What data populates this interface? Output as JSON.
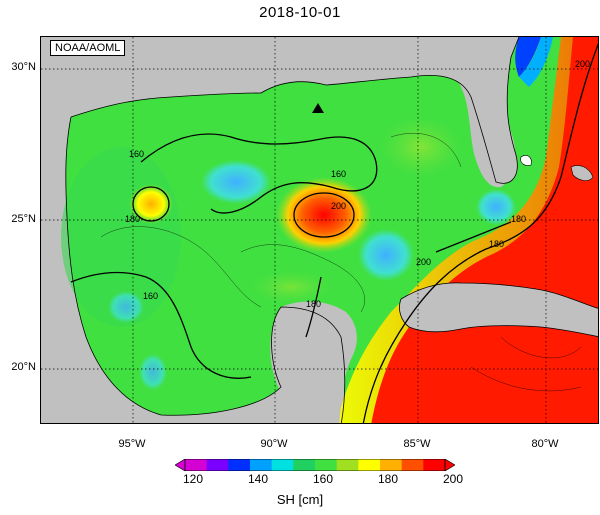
{
  "title": "2018-10-01",
  "credit": "NOAA/AOML",
  "axes": {
    "lat_ticks": [
      "30°N",
      "25°N",
      "20°N"
    ],
    "lon_ticks": [
      "95°W",
      "90°W",
      "85°W",
      "80°W"
    ]
  },
  "contour_labels": [
    "160",
    "160",
    "180",
    "200",
    "180",
    "160",
    "180",
    "180",
    "200",
    "200"
  ],
  "colorbar": {
    "label": "SH [cm]",
    "ticks": [
      "120",
      "140",
      "160",
      "180",
      "200"
    ],
    "colors": [
      "#d400d4",
      "#7a00ff",
      "#0030ff",
      "#00a0ff",
      "#00e0e0",
      "#20d060",
      "#40e040",
      "#a0e020",
      "#ffff00",
      "#ffb000",
      "#ff5000",
      "#ff0000"
    ]
  },
  "colors": {
    "land": "#c0c0c0",
    "gulf_base": "#40e040",
    "warm": "#ff1a00",
    "cool": "#40c8ff"
  },
  "markers": [
    "triangle"
  ]
}
